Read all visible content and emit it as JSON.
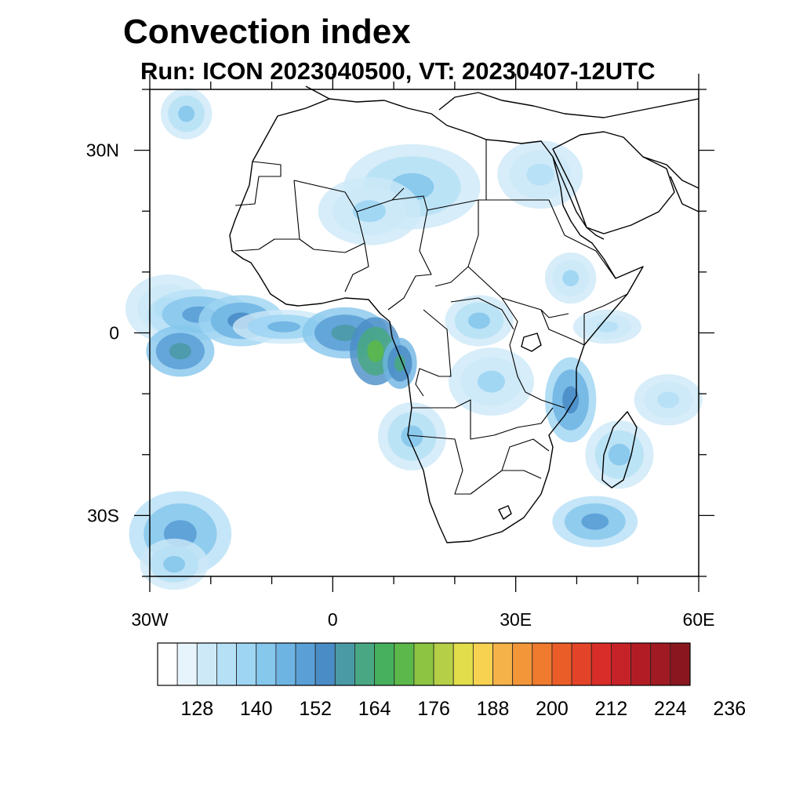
{
  "title": "Convection index",
  "subtitle": "Run: ICON 2023040500,  VT: 20230407-12UTC",
  "map": {
    "lon_range": [
      -30,
      60
    ],
    "lat_range": [
      -40,
      40
    ],
    "x_ticks": [
      {
        "lon": -30,
        "label": "30W"
      },
      {
        "lon": 0,
        "label": "0"
      },
      {
        "lon": 30,
        "label": "30E"
      },
      {
        "lon": 60,
        "label": "60E"
      }
    ],
    "y_ticks": [
      {
        "lat": 30,
        "label": "30N"
      },
      {
        "lat": 0,
        "label": "0"
      },
      {
        "lat": -30,
        "label": "30S"
      }
    ],
    "minor_step_deg": 10,
    "field_cells": [
      {
        "lon": -27,
        "lat": 4,
        "level": 4,
        "w": 5,
        "h": 4
      },
      {
        "lon": -22,
        "lat": 3,
        "level": 7,
        "w": 6,
        "h": 3
      },
      {
        "lon": -25,
        "lat": -3,
        "level": 9,
        "w": 4,
        "h": 3
      },
      {
        "lon": -15,
        "lat": 2,
        "level": 8,
        "w": 5,
        "h": 3
      },
      {
        "lon": -8,
        "lat": 1,
        "level": 6,
        "w": 6,
        "h": 2
      },
      {
        "lon": 2,
        "lat": 0,
        "level": 9,
        "w": 5,
        "h": 3
      },
      {
        "lon": 7,
        "lat": -3,
        "level": 12,
        "w": 3,
        "h": 4
      },
      {
        "lon": 11,
        "lat": -5,
        "level": 10,
        "w": 2,
        "h": 3
      },
      {
        "lon": 24,
        "lat": 2,
        "level": 5,
        "w": 4,
        "h": 3
      },
      {
        "lon": 13,
        "lat": 24,
        "level": 5,
        "w": 8,
        "h": 5
      },
      {
        "lon": 6,
        "lat": 20,
        "level": 4,
        "w": 6,
        "h": 4
      },
      {
        "lon": 34,
        "lat": 26,
        "level": 3,
        "w": 5,
        "h": 4
      },
      {
        "lon": 39,
        "lat": 9,
        "level": 4,
        "w": 3,
        "h": 3
      },
      {
        "lon": 13,
        "lat": -17,
        "level": 5,
        "w": 4,
        "h": 4
      },
      {
        "lon": 26,
        "lat": -8,
        "level": 4,
        "w": 5,
        "h": 4
      },
      {
        "lon": 39,
        "lat": -11,
        "level": 8,
        "w": 3,
        "h": 5
      },
      {
        "lon": 47,
        "lat": -20,
        "level": 5,
        "w": 4,
        "h": 4
      },
      {
        "lon": 43,
        "lat": -31,
        "level": 7,
        "w": 5,
        "h": 3
      },
      {
        "lon": -25,
        "lat": -33,
        "level": 7,
        "w": 6,
        "h": 5
      },
      {
        "lon": -26,
        "lat": -38,
        "level": 5,
        "w": 4,
        "h": 3
      },
      {
        "lon": 55,
        "lat": -11,
        "level": 3,
        "w": 4,
        "h": 3
      },
      {
        "lon": -24,
        "lat": 36,
        "level": 5,
        "w": 3,
        "h": 3
      },
      {
        "lon": 45,
        "lat": 1,
        "level": 3,
        "w": 4,
        "h": 2
      }
    ]
  },
  "colorbar": {
    "colors": [
      "#ffffff",
      "#e8f4fc",
      "#cde9f8",
      "#b6e0f6",
      "#9dd5f3",
      "#86c7ec",
      "#6eb4e3",
      "#5a9fd6",
      "#4a8dc6",
      "#4a9aa6",
      "#49a883",
      "#46b05e",
      "#5cb84a",
      "#8dc442",
      "#b5cf47",
      "#e2dd4b",
      "#f7d251",
      "#f5b248",
      "#f39639",
      "#f07a2e",
      "#ea5d29",
      "#e34328",
      "#d82d28",
      "#c62328",
      "#b21d25",
      "#9f1a22",
      "#8a171f"
    ],
    "labels": [
      "128",
      "140",
      "152",
      "164",
      "176",
      "188",
      "200",
      "212",
      "224",
      "236"
    ]
  }
}
